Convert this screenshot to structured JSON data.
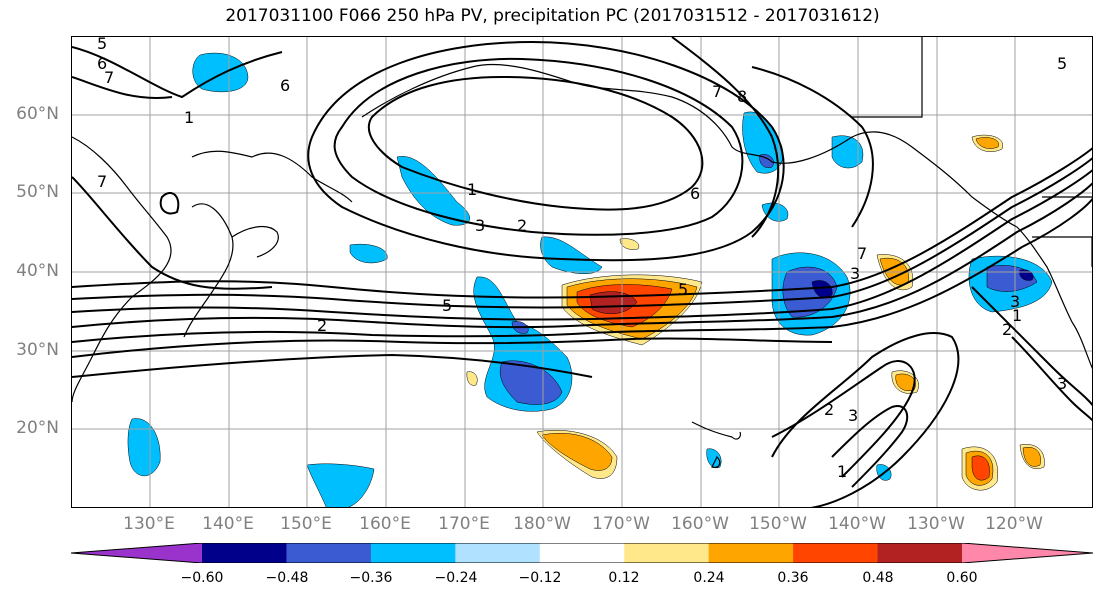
{
  "title": "2017031100 F066 250 hPa PV, precipitation PC (2017031512 - 2017031612)",
  "map": {
    "lat_labels": [
      "60°N",
      "50°N",
      "40°N",
      "30°N",
      "20°N"
    ],
    "lon_labels": [
      "130°E",
      "140°E",
      "150°E",
      "160°E",
      "170°E",
      "180°W",
      "170°W",
      "160°W",
      "150°W",
      "140°W",
      "130°W",
      "120°W"
    ],
    "contour_labels": [
      "5",
      "6",
      "7",
      "1",
      "6",
      "7",
      "8",
      "5",
      "7",
      "1",
      "3",
      "2",
      "6",
      "5",
      "5",
      "2",
      "7",
      "3",
      "2",
      "3",
      "1",
      "2",
      "3",
      "3",
      "1"
    ],
    "gridline_color": "#a0a0a0",
    "coast_color": "#000000"
  },
  "colorbar": {
    "tick_labels": [
      "−0.60",
      "−0.48",
      "−0.36",
      "−0.24",
      "−0.12",
      "0.12",
      "0.24",
      "0.36",
      "0.48",
      "0.60"
    ],
    "colors": [
      "#9933cc",
      "#00008b",
      "#3a5bd1",
      "#00bfff",
      "#b0e2ff",
      "#ffffff",
      "#ffe88a",
      "#ffa500",
      "#ff4500",
      "#b22222",
      "#ff88aa"
    ]
  },
  "shading_colors": {
    "c_m060": "#00008b",
    "c_m048": "#3a5bd1",
    "c_m036": "#00bfff",
    "c_m024": "#b0e2ff",
    "c_p024": "#ffe88a",
    "c_p036": "#ffa500",
    "c_p048": "#ff4500",
    "c_p060": "#b22222"
  }
}
